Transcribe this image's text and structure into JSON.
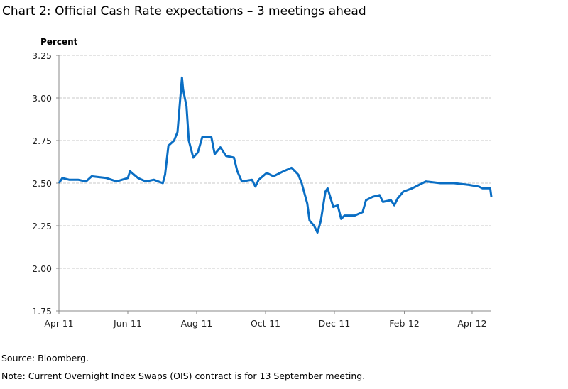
{
  "chart_data": {
    "type": "line",
    "title": "Chart 2:  Official Cash Rate expectations – 3 meetings ahead",
    "ylabel": "Percent",
    "ylim": [
      1.75,
      3.25
    ],
    "yticks": [
      "1.75",
      "2.00",
      "2.25",
      "2.50",
      "2.75",
      "3.00",
      "3.25"
    ],
    "xlim": [
      "2011-04-01",
      "2012-04-18"
    ],
    "xticks": [
      {
        "date": "2011-04-01",
        "label": "Apr-11"
      },
      {
        "date": "2011-06-01",
        "label": "Jun-11"
      },
      {
        "date": "2011-08-01",
        "label": "Aug-11"
      },
      {
        "date": "2011-10-01",
        "label": "Oct-11"
      },
      {
        "date": "2011-12-01",
        "label": "Dec-11"
      },
      {
        "date": "2012-02-01",
        "label": "Feb-12"
      },
      {
        "date": "2012-04-01",
        "label": "Apr-12"
      }
    ],
    "grid": true,
    "color": "#0a6ec4",
    "series": [
      {
        "points": [
          [
            "2011-04-01",
            2.5
          ],
          [
            "2011-04-04",
            2.53
          ],
          [
            "2011-04-10",
            2.52
          ],
          [
            "2011-04-18",
            2.52
          ],
          [
            "2011-04-25",
            2.51
          ],
          [
            "2011-04-30",
            2.54
          ],
          [
            "2011-05-13",
            2.53
          ],
          [
            "2011-05-22",
            2.51
          ],
          [
            "2011-06-01",
            2.53
          ],
          [
            "2011-06-03",
            2.57
          ],
          [
            "2011-06-10",
            2.53
          ],
          [
            "2011-06-17",
            2.51
          ],
          [
            "2011-06-24",
            2.52
          ],
          [
            "2011-07-02",
            2.5
          ],
          [
            "2011-07-04",
            2.55
          ],
          [
            "2011-07-07",
            2.72
          ],
          [
            "2011-07-12",
            2.75
          ],
          [
            "2011-07-15",
            2.8
          ],
          [
            "2011-07-19",
            3.12
          ],
          [
            "2011-07-20",
            3.05
          ],
          [
            "2011-07-23",
            2.95
          ],
          [
            "2011-07-25",
            2.75
          ],
          [
            "2011-07-29",
            2.65
          ],
          [
            "2011-08-02",
            2.68
          ],
          [
            "2011-08-06",
            2.77
          ],
          [
            "2011-08-14",
            2.77
          ],
          [
            "2011-08-17",
            2.67
          ],
          [
            "2011-08-22",
            2.71
          ],
          [
            "2011-08-27",
            2.66
          ],
          [
            "2011-09-03",
            2.65
          ],
          [
            "2011-09-06",
            2.57
          ],
          [
            "2011-09-10",
            2.51
          ],
          [
            "2011-09-19",
            2.52
          ],
          [
            "2011-09-22",
            2.48
          ],
          [
            "2011-09-25",
            2.52
          ],
          [
            "2011-10-02",
            2.56
          ],
          [
            "2011-10-08",
            2.54
          ],
          [
            "2011-10-17",
            2.57
          ],
          [
            "2011-10-24",
            2.59
          ],
          [
            "2011-10-30",
            2.55
          ],
          [
            "2011-11-02",
            2.5
          ],
          [
            "2011-11-07",
            2.38
          ],
          [
            "2011-11-09",
            2.28
          ],
          [
            "2011-11-13",
            2.25
          ],
          [
            "2011-11-16",
            2.21
          ],
          [
            "2011-11-19",
            2.28
          ],
          [
            "2011-11-23",
            2.45
          ],
          [
            "2011-11-25",
            2.47
          ],
          [
            "2011-11-30",
            2.36
          ],
          [
            "2011-12-04",
            2.37
          ],
          [
            "2011-12-07",
            2.29
          ],
          [
            "2011-12-10",
            2.31
          ],
          [
            "2011-12-19",
            2.31
          ],
          [
            "2011-12-26",
            2.33
          ],
          [
            "2011-12-29",
            2.4
          ],
          [
            "2012-01-04",
            2.42
          ],
          [
            "2012-01-10",
            2.43
          ],
          [
            "2012-01-13",
            2.39
          ],
          [
            "2012-01-20",
            2.4
          ],
          [
            "2012-01-23",
            2.37
          ],
          [
            "2012-01-26",
            2.41
          ],
          [
            "2012-01-31",
            2.45
          ],
          [
            "2012-02-08",
            2.47
          ],
          [
            "2012-02-14",
            2.49
          ],
          [
            "2012-02-20",
            2.51
          ],
          [
            "2012-03-04",
            2.5
          ],
          [
            "2012-03-16",
            2.5
          ],
          [
            "2012-03-29",
            2.49
          ],
          [
            "2012-04-07",
            2.48
          ],
          [
            "2012-04-10",
            2.47
          ],
          [
            "2012-04-17",
            2.47
          ],
          [
            "2012-04-18",
            2.42
          ]
        ]
      }
    ]
  },
  "footer": {
    "source": "Source:   Bloomberg.",
    "note": "Note:   Current Overnight Index Swaps (OIS) contract is for 13 September meeting."
  }
}
